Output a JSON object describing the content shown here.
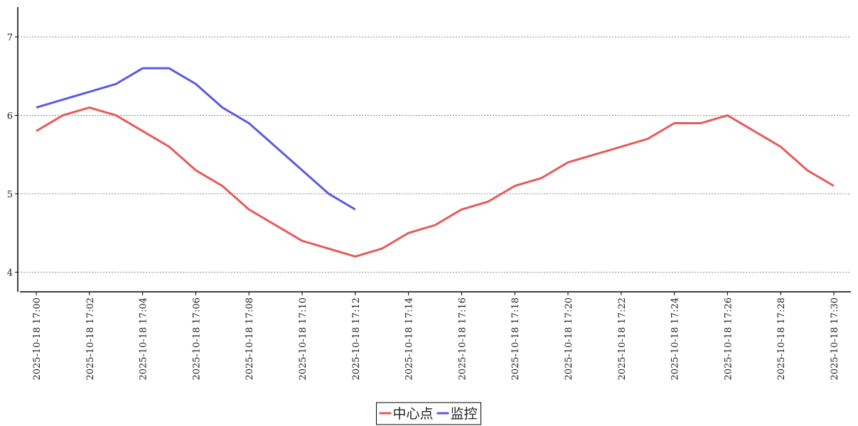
{
  "chart_data": {
    "type": "line",
    "categories": [
      "2025-10-18 17:00",
      null,
      "2025-10-18 17:02",
      null,
      "2025-10-18 17:04",
      null,
      "2025-10-18 17:06",
      null,
      "2025-10-18 17:08",
      null,
      "2025-10-18 17:10",
      null,
      "2025-10-18 17:12",
      null,
      "2025-10-18 17:14",
      null,
      "2025-10-18 17:16",
      null,
      "2025-10-18 17:18",
      null,
      "2025-10-18 17:20",
      null,
      "2025-10-18 17:22",
      null,
      "2025-10-18 17:24",
      null,
      "2025-10-18 17:26",
      null,
      "2025-10-18 17:28",
      null,
      "2025-10-18 17:30"
    ],
    "series": [
      {
        "name": "中心点",
        "color": "#e85a5a",
        "values": [
          5.8,
          6.0,
          6.1,
          6.0,
          5.8,
          5.6,
          5.3,
          5.1,
          4.8,
          4.6,
          4.4,
          4.3,
          4.2,
          4.3,
          4.5,
          4.6,
          4.8,
          4.9,
          5.1,
          5.2,
          5.4,
          5.5,
          5.6,
          5.7,
          5.9,
          5.9,
          6.0,
          5.8,
          5.6,
          5.3,
          5.1
        ]
      },
      {
        "name": "监控",
        "color": "#5a5ae0",
        "values": [
          6.1,
          6.2,
          6.3,
          6.4,
          6.6,
          6.6,
          6.4,
          6.1,
          5.9,
          5.6,
          5.3,
          5.0,
          4.8,
          null,
          null,
          null,
          null,
          null,
          null,
          null,
          null,
          null,
          null,
          null,
          null,
          null,
          null,
          null,
          null,
          null,
          null
        ]
      }
    ],
    "ylim": [
      3.75,
      7.38
    ],
    "yticks": [
      4,
      5,
      6,
      7
    ],
    "grid": true
  }
}
